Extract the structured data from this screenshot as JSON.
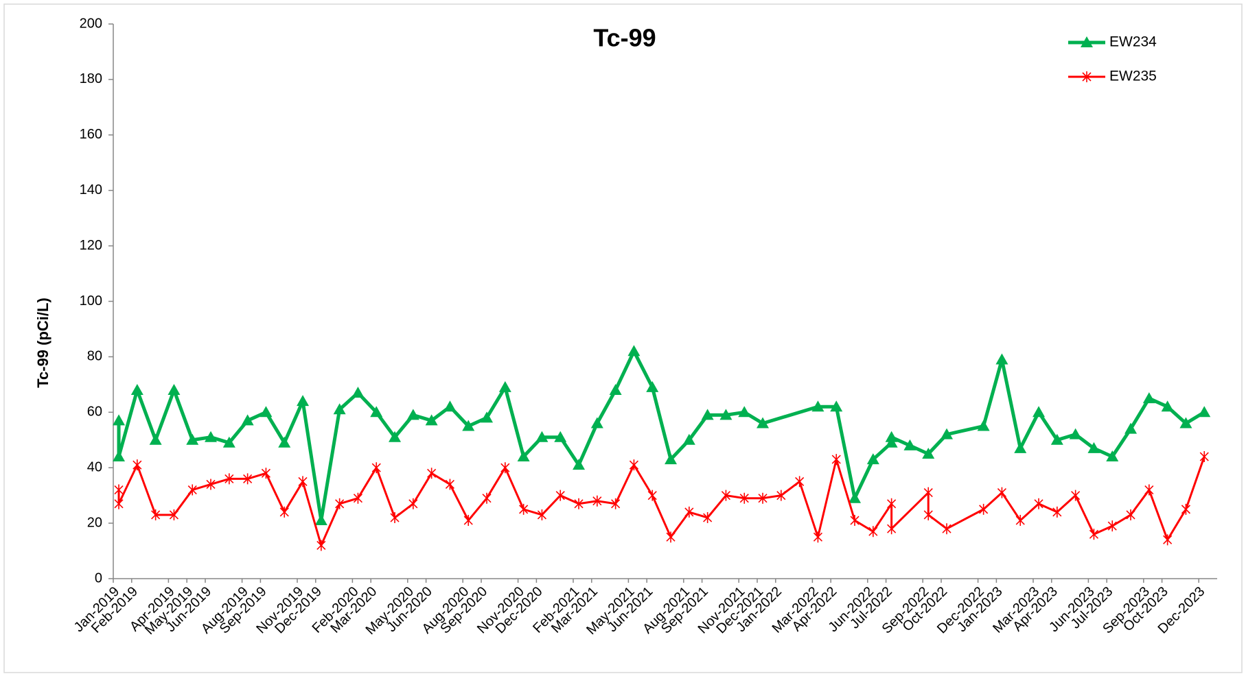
{
  "chart_data": {
    "type": "line",
    "title": "Tc-99",
    "y_label": "Tc-99 (pCi/L)",
    "ylim": [
      0,
      200
    ],
    "yticks": [
      0,
      20,
      40,
      60,
      80,
      100,
      120,
      140,
      160,
      180,
      200
    ],
    "xlim": [
      "2019-01",
      "2024-01"
    ],
    "xticks": [
      {
        "value": "2019-01",
        "label": "Jan-2019"
      },
      {
        "value": "2019-02",
        "label": "Feb-2019"
      },
      {
        "value": "2019-04",
        "label": "Apr-2019"
      },
      {
        "value": "2019-05",
        "label": "May-2019"
      },
      {
        "value": "2019-06",
        "label": "Jun-2019"
      },
      {
        "value": "2019-08",
        "label": "Aug-2019"
      },
      {
        "value": "2019-09",
        "label": "Sep-2019"
      },
      {
        "value": "2019-11",
        "label": "Nov-2019"
      },
      {
        "value": "2019-12",
        "label": "Dec-2019"
      },
      {
        "value": "2020-02",
        "label": "Feb-2020"
      },
      {
        "value": "2020-03",
        "label": "Mar-2020"
      },
      {
        "value": "2020-05",
        "label": "May-2020"
      },
      {
        "value": "2020-06",
        "label": "Jun-2020"
      },
      {
        "value": "2020-08",
        "label": "Aug-2020"
      },
      {
        "value": "2020-09",
        "label": "Sep-2020"
      },
      {
        "value": "2020-11",
        "label": "Nov-2020"
      },
      {
        "value": "2020-12",
        "label": "Dec-2020"
      },
      {
        "value": "2021-02",
        "label": "Feb-2021"
      },
      {
        "value": "2021-03",
        "label": "Mar-2021"
      },
      {
        "value": "2021-05",
        "label": "May-2021"
      },
      {
        "value": "2021-06",
        "label": "Jun-2021"
      },
      {
        "value": "2021-08",
        "label": "Aug-2021"
      },
      {
        "value": "2021-09",
        "label": "Sep-2021"
      },
      {
        "value": "2021-11",
        "label": "Nov-2021"
      },
      {
        "value": "2021-12",
        "label": "Dec-2021"
      },
      {
        "value": "2022-01",
        "label": "Jan-2022"
      },
      {
        "value": "2022-03",
        "label": "Mar-2022"
      },
      {
        "value": "2022-04",
        "label": "Apr-2022"
      },
      {
        "value": "2022-06",
        "label": "Jun-2022"
      },
      {
        "value": "2022-07",
        "label": "Jul-2022"
      },
      {
        "value": "2022-09",
        "label": "Sep-2022"
      },
      {
        "value": "2022-10",
        "label": "Oct-2022"
      },
      {
        "value": "2022-12",
        "label": "Dec-2022"
      },
      {
        "value": "2023-01",
        "label": "Jan-2023"
      },
      {
        "value": "2023-03",
        "label": "Mar-2023"
      },
      {
        "value": "2023-04",
        "label": "Apr-2023"
      },
      {
        "value": "2023-06",
        "label": "Jun-2023"
      },
      {
        "value": "2023-07",
        "label": "Jul-2023"
      },
      {
        "value": "2023-09",
        "label": "Sep-2023"
      },
      {
        "value": "2023-10",
        "label": "Oct-2023"
      },
      {
        "value": "2023-12",
        "label": "Dec-2023"
      }
    ],
    "legend": "upper right",
    "series": [
      {
        "name": "EW234",
        "color": "#00b050",
        "marker": "triangle",
        "x": [
          "2019-01",
          "2019-01",
          "2019-02",
          "2019-03",
          "2019-04",
          "2019-05",
          "2019-06",
          "2019-07",
          "2019-08",
          "2019-09",
          "2019-10",
          "2019-11",
          "2019-12",
          "2020-01",
          "2020-02",
          "2020-03",
          "2020-04",
          "2020-05",
          "2020-06",
          "2020-07",
          "2020-08",
          "2020-09",
          "2020-10",
          "2020-11",
          "2020-12",
          "2021-01",
          "2021-02",
          "2021-03",
          "2021-04",
          "2021-05",
          "2021-06",
          "2021-07",
          "2021-08",
          "2021-09",
          "2021-10",
          "2021-11",
          "2021-12",
          "2022-03",
          "2022-04",
          "2022-05",
          "2022-06",
          "2022-07",
          "2022-07",
          "2022-08",
          "2022-09",
          "2022-10",
          "2022-12",
          "2023-01",
          "2023-02",
          "2023-03",
          "2023-04",
          "2023-05",
          "2023-06",
          "2023-07",
          "2023-08",
          "2023-09",
          "2023-10",
          "2023-11",
          "2023-12"
        ],
        "values": [
          57,
          44,
          68,
          50,
          68,
          50,
          51,
          49,
          57,
          60,
          49,
          64,
          21,
          61,
          67,
          60,
          51,
          59,
          57,
          62,
          55,
          58,
          69,
          44,
          51,
          51,
          41,
          56,
          68,
          82,
          69,
          43,
          50,
          59,
          59,
          60,
          56,
          62,
          62,
          29,
          43,
          49,
          51,
          48,
          45,
          52,
          55,
          79,
          47,
          60,
          50,
          52,
          47,
          44,
          54,
          65,
          62,
          56,
          60
        ]
      },
      {
        "name": "EW235",
        "color": "#ff0000",
        "marker": "star",
        "x": [
          "2019-01",
          "2019-01",
          "2019-02",
          "2019-03",
          "2019-04",
          "2019-05",
          "2019-06",
          "2019-07",
          "2019-08",
          "2019-09",
          "2019-10",
          "2019-11",
          "2019-12",
          "2020-01",
          "2020-02",
          "2020-03",
          "2020-04",
          "2020-05",
          "2020-06",
          "2020-07",
          "2020-08",
          "2020-09",
          "2020-10",
          "2020-11",
          "2020-12",
          "2021-01",
          "2021-02",
          "2021-03",
          "2021-04",
          "2021-05",
          "2021-06",
          "2021-07",
          "2021-08",
          "2021-09",
          "2021-10",
          "2021-11",
          "2021-12",
          "2022-01",
          "2022-02",
          "2022-03",
          "2022-04",
          "2022-05",
          "2022-06",
          "2022-07",
          "2022-07",
          "2022-09",
          "2022-09",
          "2022-10",
          "2022-12",
          "2023-01",
          "2023-02",
          "2023-03",
          "2023-04",
          "2023-05",
          "2023-06",
          "2023-07",
          "2023-08",
          "2023-09",
          "2023-10",
          "2023-11",
          "2023-12"
        ],
        "values": [
          32,
          27,
          41,
          23,
          23,
          32,
          34,
          36,
          36,
          38,
          24,
          35,
          12,
          27,
          29,
          40,
          22,
          27,
          38,
          34,
          21,
          29,
          40,
          25,
          23,
          30,
          27,
          28,
          27,
          41,
          30,
          15,
          24,
          22,
          30,
          29,
          29,
          30,
          35,
          15,
          43,
          21,
          17,
          27,
          18,
          31,
          23,
          18,
          25,
          31,
          21,
          27,
          24,
          30,
          16,
          19,
          23,
          32,
          14,
          25,
          44
        ]
      }
    ]
  }
}
